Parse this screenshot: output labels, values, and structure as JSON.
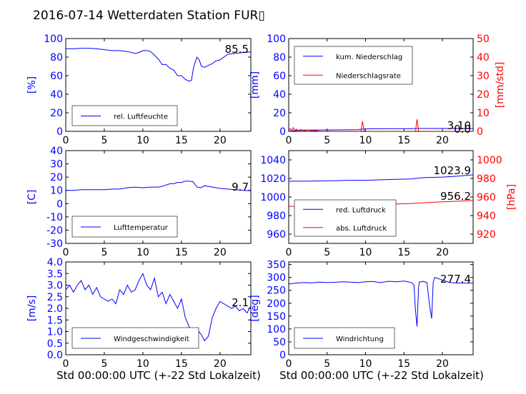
{
  "title": "2016-07-14 Wetterdaten Station FUR▯",
  "xlabel": "Std 00:00:00 UTC (+-22 Std Lokalzeit)",
  "colors": {
    "primary": "#0000ff",
    "secondary": "#ff0000",
    "axis": "#000000"
  },
  "chart_data": [
    {
      "type": "line",
      "name": "humidity-panel",
      "ylabel": "[%]",
      "xlim": [
        0,
        24
      ],
      "ylim": [
        0,
        100
      ],
      "xticks": [
        0,
        5,
        10,
        15,
        20
      ],
      "yticks": [
        0,
        20,
        40,
        60,
        80,
        100
      ],
      "legend": {
        "placement": "bottom-left",
        "entries": [
          "rel. Luftfeuchte"
        ]
      },
      "last_value_label": "85.5",
      "series": [
        {
          "name": "rel. Luftfeuchte",
          "color": "#0000ff",
          "x": [
            0,
            1,
            2,
            3,
            4,
            5,
            6,
            7,
            8,
            9,
            9.5,
            10,
            10.5,
            11,
            11.5,
            12,
            12.5,
            13,
            13.5,
            14,
            14.5,
            15,
            15.5,
            16,
            16.3,
            16.6,
            17,
            17.3,
            17.6,
            18,
            18.5,
            19,
            19.5,
            20,
            20.5,
            21,
            22,
            23,
            24
          ],
          "y": [
            89,
            89,
            89.5,
            89.5,
            89,
            88,
            87,
            87,
            86,
            84,
            85,
            87,
            87,
            86,
            82,
            78,
            72,
            72,
            68,
            66,
            60,
            60,
            56,
            54,
            55,
            70,
            80,
            77,
            70,
            69,
            71,
            73,
            76,
            77,
            80,
            83,
            84,
            85,
            85.5
          ]
        }
      ]
    },
    {
      "type": "line",
      "name": "precipitation-panel",
      "ylabel": "[mm]",
      "y2label": "[mm/std]",
      "xlim": [
        0,
        24
      ],
      "ylim": [
        0,
        100
      ],
      "y2lim": [
        0,
        50
      ],
      "xticks": [
        0,
        5,
        10,
        15,
        20
      ],
      "yticks": [
        0,
        20,
        40,
        60,
        80,
        100
      ],
      "y2ticks": [
        0,
        10,
        20,
        30,
        40,
        50
      ],
      "legend": {
        "placement": "top-left",
        "entries": [
          "kum. Niederschlag",
          "Niederschlagsrate"
        ]
      },
      "last_value_labels": [
        "3.10",
        "0.0"
      ],
      "series": [
        {
          "name": "kum. Niederschlag",
          "color": "#0000ff",
          "axis": "left",
          "x": [
            0,
            0.5,
            1,
            2,
            3,
            5,
            9,
            9.6,
            10,
            12,
            16,
            16.7,
            17,
            20,
            24
          ],
          "y": [
            0,
            0.5,
            1,
            1.3,
            1.5,
            1.5,
            1.8,
            2.5,
            2.7,
            2.8,
            2.9,
            3.1,
            3.1,
            3.1,
            3.1
          ]
        },
        {
          "name": "Niederschlagsrate",
          "color": "#ff0000",
          "axis": "right",
          "x": [
            0,
            0.2,
            0.4,
            0.6,
            0.8,
            1.0,
            1.2,
            1.5,
            2,
            2.5,
            3,
            3.5,
            4,
            5,
            9,
            9.4,
            9.6,
            9.8,
            10,
            12,
            16,
            16.5,
            16.7,
            16.9,
            17,
            20,
            24
          ],
          "y": [
            0,
            1.5,
            0.5,
            2,
            0.3,
            1.2,
            0.2,
            1,
            0.3,
            0.8,
            0.2,
            0.5,
            0,
            0,
            0,
            0,
            5.5,
            0.5,
            0,
            0,
            0,
            0,
            6.5,
            0.3,
            0,
            0,
            0
          ]
        }
      ]
    },
    {
      "type": "line",
      "name": "temperature-panel",
      "ylabel": "[C]",
      "xlim": [
        0,
        24
      ],
      "ylim": [
        -30,
        40
      ],
      "xticks": [
        0,
        5,
        10,
        15,
        20
      ],
      "yticks": [
        -30,
        -20,
        -10,
        0,
        10,
        20,
        30,
        40
      ],
      "legend": {
        "placement": "bottom-left",
        "entries": [
          "Lufttemperatur"
        ]
      },
      "last_value_label": "9.7",
      "series": [
        {
          "name": "Lufttemperatur",
          "color": "#0000ff",
          "x": [
            0,
            1,
            2,
            3,
            4,
            5,
            6,
            7,
            8,
            9,
            10,
            11,
            12,
            12.5,
            13,
            13.5,
            14,
            14.5,
            15,
            15.5,
            16,
            16.5,
            17,
            17.5,
            18,
            18.5,
            19,
            20,
            21,
            22,
            23,
            24
          ],
          "y": [
            10,
            10,
            10.5,
            10.5,
            10.5,
            10.5,
            11,
            11,
            12,
            12.5,
            12,
            12.5,
            12.5,
            13,
            14,
            15,
            15,
            16,
            16,
            17,
            17,
            16.5,
            12.5,
            12,
            13.5,
            13,
            12.5,
            11.5,
            11,
            10.5,
            10,
            9.7
          ]
        }
      ]
    },
    {
      "type": "line",
      "name": "pressure-panel",
      "ylabel": "[hPa]",
      "xlim": [
        0,
        24
      ],
      "ylim": [
        950,
        1050
      ],
      "y2lim": [
        910,
        1010
      ],
      "xticks": [
        0,
        5,
        10,
        15,
        20
      ],
      "yticks": [
        960,
        980,
        1000,
        1020,
        1040
      ],
      "y2ticks": [
        920,
        940,
        960,
        980,
        1000
      ],
      "legend": {
        "placement": "bottom-left",
        "entries": [
          "red. Luftdruck",
          "abs. Luftdruck"
        ]
      },
      "last_value_labels": [
        "1023.9",
        "956.2"
      ],
      "series": [
        {
          "name": "red. Luftdruck",
          "color": "#0000ff",
          "axis": "left",
          "x": [
            0,
            2,
            4,
            6,
            8,
            10,
            12,
            14,
            16,
            17,
            18,
            20,
            22,
            24
          ],
          "y": [
            1017,
            1017,
            1017.3,
            1017.6,
            1018,
            1018,
            1018.5,
            1019,
            1019.5,
            1020.5,
            1021,
            1021.5,
            1022.5,
            1023.9
          ]
        },
        {
          "name": "abs. Luftdruck",
          "color": "#ff0000",
          "axis": "right",
          "x": [
            0,
            2,
            4,
            6,
            8,
            10,
            12,
            14,
            16,
            17,
            18,
            20,
            22,
            24
          ],
          "y": [
            950,
            950,
            950.3,
            950.7,
            951,
            951.5,
            952,
            952.5,
            953,
            953.5,
            954,
            954.8,
            955.5,
            956.2
          ]
        }
      ]
    },
    {
      "type": "line",
      "name": "windspeed-panel",
      "ylabel": "[m/s]",
      "xlim": [
        0,
        24
      ],
      "ylim": [
        0,
        4
      ],
      "xticks": [
        0,
        5,
        10,
        15,
        20
      ],
      "yticks": [
        0.0,
        0.5,
        1.0,
        1.5,
        2.0,
        2.5,
        3.0,
        3.5,
        4.0
      ],
      "legend": {
        "placement": "bottom-left",
        "entries": [
          "Windgeschwindigkeit"
        ]
      },
      "last_value_label": "2.1",
      "series": [
        {
          "name": "Windgeschwindigkeit",
          "color": "#0000ff",
          "x": [
            0,
            0.5,
            1,
            1.5,
            2,
            2.5,
            3,
            3.5,
            4,
            4.5,
            5,
            5.5,
            6,
            6.5,
            7,
            7.5,
            8,
            8.5,
            9,
            9.5,
            10,
            10.5,
            11,
            11.5,
            12,
            12.5,
            13,
            13.5,
            14,
            14.5,
            15,
            15.5,
            16,
            16.5,
            17,
            17.5,
            18,
            18.5,
            19,
            19.5,
            20,
            20.5,
            21,
            21.5,
            22,
            22.5,
            23,
            23.5,
            24
          ],
          "y": [
            2.8,
            3.0,
            2.7,
            3.0,
            3.2,
            2.8,
            3.0,
            2.6,
            2.9,
            2.5,
            2.4,
            2.3,
            2.4,
            2.2,
            2.8,
            2.6,
            3.0,
            2.7,
            2.8,
            3.2,
            3.5,
            3.0,
            2.8,
            3.3,
            2.5,
            2.7,
            2.2,
            2.6,
            2.3,
            2.0,
            2.4,
            1.6,
            1.2,
            1.0,
            1.1,
            0.9,
            0.6,
            0.8,
            1.6,
            2.0,
            2.3,
            2.2,
            2.1,
            2.0,
            2.1,
            1.9,
            2.0,
            1.8,
            2.1
          ]
        }
      ]
    },
    {
      "type": "line",
      "name": "winddirection-panel",
      "ylabel": "[deg]",
      "xlim": [
        0,
        24
      ],
      "ylim": [
        0,
        360
      ],
      "xticks": [
        0,
        5,
        10,
        15,
        20
      ],
      "yticks": [
        0,
        50,
        100,
        150,
        200,
        250,
        300,
        350
      ],
      "legend": {
        "placement": "bottom-left",
        "entries": [
          "Windrichtung"
        ]
      },
      "last_value_label": "277.4",
      "series": [
        {
          "name": "Windrichtung",
          "color": "#0000ff",
          "x": [
            0,
            1,
            2,
            3,
            4,
            5,
            6,
            7,
            8,
            9,
            10,
            11,
            11.5,
            12,
            13,
            14,
            15,
            15.5,
            16,
            16.3,
            16.5,
            16.7,
            16.9,
            17,
            17.5,
            18,
            18.3,
            18.6,
            18.8,
            19,
            19.5,
            20,
            20.5,
            21,
            22,
            23,
            24
          ],
          "y": [
            275,
            278,
            280,
            279,
            282,
            280,
            281,
            283,
            282,
            280,
            283,
            284,
            282,
            280,
            285,
            283,
            286,
            283,
            280,
            270,
            170,
            110,
            260,
            282,
            285,
            280,
            200,
            140,
            280,
            300,
            295,
            290,
            285,
            280,
            278,
            278,
            277.4
          ]
        }
      ]
    }
  ]
}
